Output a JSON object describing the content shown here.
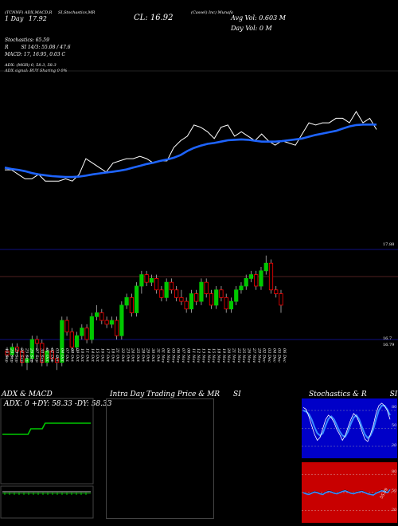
{
  "header": {
    "fragments": [
      "(Cassel) Inc) Munafa",
      "ADX,MACD,R",
      "SI,Stochastics,MR"
    ],
    "ticker": "(TCNNF)",
    "date_line": "1 Day",
    "date_value": "17.92",
    "close_label": "CL: 16.92",
    "avg_vol": "Avg Vol: 0.603 M",
    "day_vol": "Day Vol: 0   M"
  },
  "indicators": {
    "stochastics": "Stochastics: 65.59",
    "rsi": "SI 14/3: 55.08 / 47.6",
    "rsi_prefix": "R",
    "macd": "MACD: 17, 16.95, 0.03 C",
    "adx": "ADX:                (MGR) 0, 58.3, 58.3",
    "adx_signal": "ADX  signal:                              BUY Sharing 0 0%"
  },
  "right_labels": {
    "upper": "17.88",
    "lower_a": "16.7",
    "lower_b": "16.79"
  },
  "x_dates": [
    "19 Sep",
    "20 Sep",
    "23 Sep",
    "24 Sep",
    "25 Sep",
    "26 Sep",
    "27 Sep",
    "30 Sep",
    "01 Oct",
    "02 Oct",
    "03 Oct",
    "04 Oct",
    "07 Oct",
    "08 Oct",
    "09 Oct",
    "10 Oct",
    "11 Oct",
    "14 Oct",
    "15 Oct",
    "16 Oct",
    "17 Oct",
    "18 Oct",
    "21 Oct",
    "22 Oct",
    "23 Oct",
    "24 Oct",
    "25 Oct",
    "28 Oct",
    "29 Oct",
    "30 Oct",
    "31 Oct",
    "01 Nov",
    "04 Nov",
    "05 Nov",
    "06 Nov",
    "07 Nov",
    "08 Nov",
    "11 Nov",
    "12 Nov",
    "13 Nov",
    "14 Nov",
    "15 Nov",
    "18 Nov",
    "19 Nov",
    "20 Nov",
    "21 Nov",
    "22 Nov",
    "25 Nov",
    "26 Nov",
    "27 Nov",
    "29 Nov",
    "02 Dec",
    "03 Dec",
    "04 Dec",
    "05 Dec",
    "06 Dec"
  ],
  "panels": {
    "adx": {
      "title": "ADX  & MACD",
      "reading": "ADX: 0  +DY: 58.33  -DY: 58.33"
    },
    "intraday": {
      "title": "Intra  Day Trading Price  & MR",
      "suffix": "SI"
    },
    "stoch": {
      "title": "Stochastics & R",
      "suffix": "SI"
    }
  },
  "stoch_ticks": [
    "80",
    "50",
    "20"
  ],
  "rsi_ticks": [
    "80",
    "50",
    "20"
  ],
  "rsi_value": "55.09",
  "colors": {
    "up": "#00c800",
    "down": "#ff0000",
    "ma": "#1e64ff",
    "stoch_bg": "#0000c8",
    "rsi_bg": "#c80000"
  },
  "chart_data": {
    "type": "candlestick",
    "close_line": [
      17.3,
      17.3,
      17.2,
      17.1,
      17.1,
      17.2,
      17.05,
      17.05,
      17.05,
      17.1,
      17.05,
      17.2,
      17.55,
      17.45,
      17.35,
      17.25,
      17.45,
      17.5,
      17.55,
      17.55,
      17.6,
      17.55,
      17.45,
      17.5,
      17.5,
      17.8,
      17.95,
      18.05,
      18.3,
      18.25,
      18.15,
      18.0,
      18.25,
      18.3,
      18.05,
      18.15,
      18.05,
      17.95,
      18.1,
      17.95,
      17.85,
      17.95,
      17.9,
      17.85,
      18.1,
      18.35,
      18.3,
      18.35,
      18.35,
      18.45,
      18.45,
      18.35,
      18.6,
      18.35,
      18.45,
      18.2
    ],
    "ma_line": [
      17.35,
      17.32,
      17.3,
      17.27,
      17.23,
      17.2,
      17.18,
      17.16,
      17.15,
      17.14,
      17.14,
      17.15,
      17.17,
      17.2,
      17.22,
      17.24,
      17.26,
      17.28,
      17.31,
      17.35,
      17.39,
      17.43,
      17.46,
      17.5,
      17.53,
      17.57,
      17.63,
      17.72,
      17.79,
      17.84,
      17.88,
      17.9,
      17.93,
      17.96,
      17.97,
      17.98,
      17.97,
      17.95,
      17.93,
      17.93,
      17.93,
      17.94,
      17.96,
      17.98,
      18.0,
      18.04,
      18.08,
      18.11,
      18.14,
      18.17,
      18.22,
      18.27,
      18.3,
      18.31,
      18.31,
      18.31
    ],
    "candles": [
      [
        16.55,
        16.5,
        16.45,
        16.6
      ],
      [
        16.5,
        16.6,
        16.45,
        16.65
      ],
      [
        16.6,
        16.55,
        16.5,
        16.65
      ],
      [
        16.55,
        16.4,
        16.35,
        16.6
      ],
      [
        16.4,
        16.45,
        16.3,
        16.5
      ],
      [
        16.45,
        16.7,
        16.4,
        16.75
      ],
      [
        16.7,
        16.65,
        16.55,
        16.75
      ],
      [
        16.65,
        16.4,
        16.35,
        16.7
      ],
      [
        16.4,
        16.55,
        16.35,
        16.6
      ],
      [
        16.55,
        16.45,
        16.4,
        16.6
      ],
      [
        16.45,
        16.4,
        16.3,
        16.5
      ],
      [
        16.4,
        16.95,
        16.35,
        17.0
      ],
      [
        16.95,
        16.8,
        16.75,
        17.0
      ],
      [
        16.8,
        16.6,
        16.55,
        16.85
      ],
      [
        16.6,
        16.75,
        16.55,
        16.8
      ],
      [
        16.75,
        16.85,
        16.7,
        16.9
      ],
      [
        16.85,
        16.7,
        16.65,
        16.9
      ],
      [
        16.7,
        17.0,
        16.65,
        17.05
      ],
      [
        17.0,
        17.05,
        16.95,
        17.15
      ],
      [
        17.05,
        16.95,
        16.9,
        17.1
      ],
      [
        16.95,
        16.9,
        16.85,
        17.0
      ],
      [
        16.9,
        16.95,
        16.85,
        17.0
      ],
      [
        16.95,
        16.75,
        16.7,
        17.0
      ],
      [
        16.75,
        17.15,
        16.7,
        17.2
      ],
      [
        17.15,
        17.25,
        17.1,
        17.3
      ],
      [
        17.25,
        17.05,
        17.0,
        17.3
      ],
      [
        17.05,
        17.4,
        17.0,
        17.45
      ],
      [
        17.4,
        17.55,
        17.3,
        17.6
      ],
      [
        17.55,
        17.45,
        17.4,
        17.6
      ],
      [
        17.45,
        17.5,
        17.4,
        17.55
      ],
      [
        17.5,
        17.35,
        17.3,
        17.55
      ],
      [
        17.35,
        17.25,
        17.2,
        17.4
      ],
      [
        17.25,
        17.45,
        17.2,
        17.5
      ],
      [
        17.45,
        17.35,
        17.3,
        17.5
      ],
      [
        17.35,
        17.25,
        17.2,
        17.4
      ],
      [
        17.25,
        17.2,
        17.15,
        17.35
      ],
      [
        17.2,
        17.1,
        17.05,
        17.25
      ],
      [
        17.1,
        17.3,
        17.05,
        17.35
      ],
      [
        17.3,
        17.2,
        17.15,
        17.35
      ],
      [
        17.2,
        17.45,
        17.15,
        17.5
      ],
      [
        17.45,
        17.3,
        17.25,
        17.5
      ],
      [
        17.3,
        17.15,
        17.1,
        17.35
      ],
      [
        17.15,
        17.35,
        17.1,
        17.4
      ],
      [
        17.35,
        17.25,
        17.2,
        17.4
      ],
      [
        17.25,
        17.1,
        17.05,
        17.3
      ],
      [
        17.1,
        17.2,
        17.05,
        17.25
      ],
      [
        17.2,
        17.35,
        17.15,
        17.4
      ],
      [
        17.35,
        17.4,
        17.3,
        17.45
      ],
      [
        17.4,
        17.5,
        17.35,
        17.55
      ],
      [
        17.5,
        17.55,
        17.45,
        17.6
      ],
      [
        17.55,
        17.4,
        17.35,
        17.6
      ],
      [
        17.4,
        17.6,
        17.35,
        17.65
      ],
      [
        17.6,
        17.7,
        17.55,
        17.8
      ],
      [
        17.7,
        17.35,
        17.3,
        17.75
      ],
      [
        17.35,
        17.3,
        17.25,
        17.4
      ],
      [
        17.3,
        17.15,
        17.05,
        17.35
      ]
    ],
    "adx_line": [
      0.3,
      0.3,
      0.3,
      0.3,
      0.3,
      0.3,
      0.3,
      0.3,
      0.3,
      0.3,
      0.45,
      0.45,
      0.45,
      0.45,
      0.45,
      0.6,
      0.6,
      0.6,
      0.6,
      0.6,
      0.6,
      0.6,
      0.6,
      0.6,
      0.6,
      0.6,
      0.6,
      0.6,
      0.6,
      0.6,
      0.6,
      0.6
    ],
    "stoch_k": [
      85,
      82,
      70,
      55,
      40,
      30,
      35,
      50,
      65,
      72,
      68,
      60,
      48,
      40,
      30,
      38,
      52,
      65,
      75,
      70,
      60,
      45,
      32,
      28,
      40,
      55,
      75,
      88,
      92,
      88,
      80,
      65
    ],
    "stoch_d": [
      80,
      78,
      74,
      65,
      52,
      42,
      38,
      42,
      55,
      66,
      70,
      65,
      55,
      45,
      38,
      36,
      45,
      58,
      68,
      72,
      65,
      52,
      40,
      34,
      38,
      48,
      65,
      80,
      88,
      88,
      82,
      72
    ],
    "rsi_line": [
      50,
      48,
      47,
      49,
      51,
      50,
      48,
      47,
      50,
      52,
      51,
      49,
      48,
      50,
      52,
      53,
      51,
      49,
      48,
      50,
      51,
      52,
      50,
      48,
      47,
      46,
      49,
      51,
      53,
      52,
      50,
      55
    ]
  }
}
